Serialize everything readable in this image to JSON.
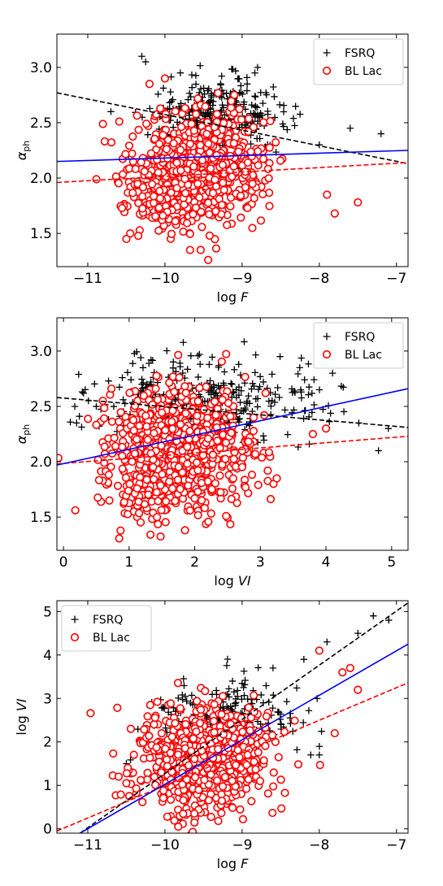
{
  "colors": {
    "fsrq": "#000000",
    "bl_lac": "#ff0000",
    "fit_all": "#0000ff",
    "background": "#ffffff"
  },
  "chart_data": [
    {
      "type": "scatter",
      "x": "log F",
      "xlim": [
        -11.4,
        -6.85
      ],
      "ylim": [
        1.2,
        3.3
      ],
      "xticks": [
        -11,
        -10,
        -9,
        -8,
        -7
      ],
      "yticks": [
        1.5,
        2.0,
        2.5,
        3.0
      ],
      "xtick_labels": [
        "−11",
        "−10",
        "−9",
        "−8",
        "−7"
      ],
      "ytick_labels": [
        "1.5",
        "2.0",
        "2.5",
        "3.0"
      ],
      "xlabel_main": "log",
      "xlabel_var": "F",
      "ylabel_main": "α",
      "ylabel_sub": "ph",
      "legend": {
        "position": "top-right",
        "entries": [
          "FSRQ",
          "BL Lac"
        ]
      },
      "grid": false,
      "series": [
        {
          "name": "FSRQ",
          "marker": "plus",
          "clusters": [
            {
              "mean": [
                -9.3,
                2.55
              ],
              "sd": [
                0.45,
                0.17
              ],
              "count": 330
            }
          ],
          "points": [
            [
              -10.3,
              3.1
            ],
            [
              -10.25,
              3.05
            ],
            [
              -9.8,
              2.95
            ],
            [
              -8.8,
              3.0
            ],
            [
              -7.6,
              2.45
            ],
            [
              -7.2,
              2.4
            ],
            [
              -8.0,
              2.3
            ],
            [
              -10.7,
              2.6
            ]
          ]
        },
        {
          "name": "BL Lac",
          "marker": "circle",
          "clusters": [
            {
              "mean": [
                -9.55,
                2.1
              ],
              "sd": [
                0.42,
                0.25
              ],
              "count": 720
            },
            {
              "mean": [
                -10.1,
                1.75
              ],
              "sd": [
                0.22,
                0.12
              ],
              "count": 70
            }
          ],
          "points": [
            [
              -10.45,
              1.5
            ],
            [
              -10.5,
              1.45
            ],
            [
              -7.8,
              1.68
            ],
            [
              -7.5,
              1.78
            ],
            [
              -10.2,
              2.85
            ],
            [
              -10.0,
              2.9
            ],
            [
              -7.9,
              1.85
            ]
          ]
        }
      ],
      "fits": [
        {
          "x": [
            -11.4,
            -6.85
          ],
          "y": [
            2.77,
            2.13
          ],
          "dashed": true,
          "color_key": "fsrq"
        },
        {
          "x": [
            -11.4,
            -6.85
          ],
          "y": [
            1.96,
            2.14
          ],
          "dashed": true,
          "color_key": "bl_lac"
        },
        {
          "x": [
            -11.4,
            -6.85
          ],
          "y": [
            2.15,
            2.25
          ],
          "dashed": false,
          "color_key": "fit_all"
        }
      ]
    },
    {
      "type": "scatter",
      "x": "log VI",
      "xlim": [
        -0.1,
        5.25
      ],
      "ylim": [
        1.2,
        3.3
      ],
      "xticks": [
        0,
        1,
        2,
        3,
        4,
        5
      ],
      "yticks": [
        1.5,
        2.0,
        2.5,
        3.0
      ],
      "xtick_labels": [
        "0",
        "1",
        "2",
        "3",
        "4",
        "5"
      ],
      "ytick_labels": [
        "1.5",
        "2.0",
        "2.5",
        "3.0"
      ],
      "xlabel_main": "log",
      "xlabel_var": "VI",
      "ylabel_main": "α",
      "ylabel_sub": "ph",
      "legend": {
        "position": "top-right",
        "entries": [
          "FSRQ",
          "BL Lac"
        ]
      },
      "grid": false,
      "series": [
        {
          "name": "FSRQ",
          "marker": "plus",
          "clusters": [
            {
              "mean": [
                2.2,
                2.55
              ],
              "sd": [
                0.85,
                0.2
              ],
              "count": 330
            }
          ],
          "points": [
            [
              0.2,
              2.35
            ],
            [
              0.5,
              2.5
            ],
            [
              4.5,
              2.35
            ],
            [
              4.95,
              2.3
            ],
            [
              3.9,
              2.65
            ],
            [
              3.6,
              2.85
            ],
            [
              4.1,
              2.8
            ],
            [
              4.8,
              2.1
            ],
            [
              3.3,
              2.95
            ]
          ]
        },
        {
          "name": "BL Lac",
          "marker": "circle",
          "clusters": [
            {
              "mean": [
                1.75,
                2.1
              ],
              "sd": [
                0.55,
                0.27
              ],
              "count": 760
            },
            {
              "mean": [
                1.2,
                1.75
              ],
              "sd": [
                0.25,
                0.15
              ],
              "count": 60
            }
          ],
          "points": [
            [
              0.6,
              2.55
            ],
            [
              0.7,
              1.65
            ],
            [
              3.2,
              1.8
            ],
            [
              3.25,
              1.85
            ],
            [
              4.0,
              2.3
            ],
            [
              3.8,
              2.25
            ]
          ]
        }
      ],
      "fits": [
        {
          "x": [
            -0.1,
            5.25
          ],
          "y": [
            2.58,
            2.31
          ],
          "dashed": true,
          "color_key": "fsrq"
        },
        {
          "x": [
            -0.1,
            5.25
          ],
          "y": [
            1.98,
            2.23
          ],
          "dashed": true,
          "color_key": "bl_lac"
        },
        {
          "x": [
            -0.1,
            5.25
          ],
          "y": [
            1.97,
            2.66
          ],
          "dashed": false,
          "color_key": "fit_all"
        }
      ]
    },
    {
      "type": "scatter",
      "x": "log F",
      "xlim": [
        -11.4,
        -6.85
      ],
      "ylim": [
        -0.1,
        5.25
      ],
      "xticks": [
        -11,
        -10,
        -9,
        -8,
        -7
      ],
      "yticks": [
        0,
        1,
        2,
        3,
        4,
        5
      ],
      "xtick_labels": [
        "−11",
        "−10",
        "−9",
        "−8",
        "−7"
      ],
      "ytick_labels": [
        "0",
        "1",
        "2",
        "3",
        "4",
        "5"
      ],
      "xlabel_main": "log",
      "xlabel_var": "F",
      "ylabel_main": "log",
      "ylabel_sub": "VI",
      "legend": {
        "position": "top-left",
        "entries": [
          "FSRQ",
          "BL Lac"
        ]
      },
      "grid": false,
      "series": [
        {
          "name": "FSRQ",
          "marker": "plus",
          "clusters": [
            {
              "mean": [
                -9.3,
                2.4
              ],
              "sd": [
                0.45,
                0.5
              ],
              "count": 300
            }
          ],
          "points": [
            [
              -7.3,
              4.9
            ],
            [
              -7.1,
              4.8
            ],
            [
              -7.5,
              4.5
            ],
            [
              -7.9,
              4.3
            ],
            [
              -8.2,
              3.9
            ],
            [
              -8.6,
              3.7
            ],
            [
              -9.8,
              0.2
            ],
            [
              -8.0,
              1.7
            ],
            [
              -10.5,
              1.5
            ]
          ]
        },
        {
          "name": "BL Lac",
          "marker": "circle",
          "clusters": [
            {
              "mean": [
                -9.5,
                1.6
              ],
              "sd": [
                0.45,
                0.6
              ],
              "count": 760
            }
          ],
          "points": [
            [
              -10.6,
              1.2
            ],
            [
              -10.5,
              1.05
            ],
            [
              -7.5,
              3.2
            ],
            [
              -7.7,
              3.6
            ],
            [
              -7.6,
              3.7
            ],
            [
              -8.0,
              4.1
            ],
            [
              -7.8,
              2.2
            ]
          ]
        }
      ],
      "fits": [
        {
          "x": [
            -11.1,
            -6.85
          ],
          "y": [
            -0.1,
            5.2
          ],
          "dashed": true,
          "color_key": "fsrq"
        },
        {
          "x": [
            -11.4,
            -6.85
          ],
          "y": [
            -0.05,
            3.36
          ],
          "dashed": true,
          "color_key": "bl_lac"
        },
        {
          "x": [
            -11.1,
            -6.85
          ],
          "y": [
            -0.1,
            4.25
          ],
          "dashed": false,
          "color_key": "fit_all"
        }
      ]
    }
  ]
}
